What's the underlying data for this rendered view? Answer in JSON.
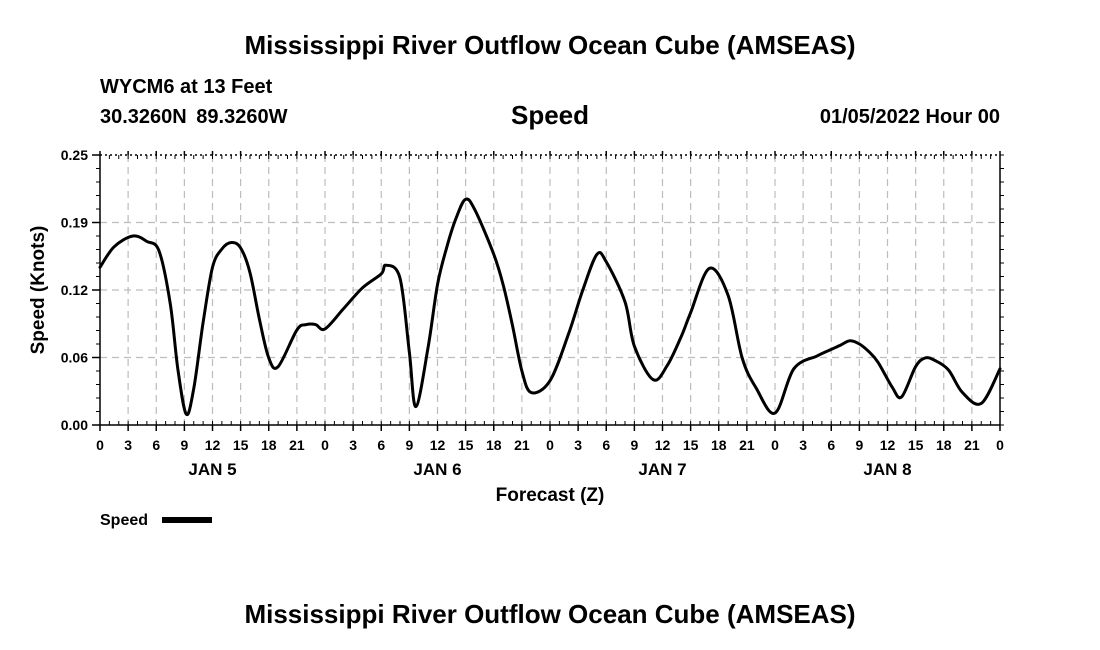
{
  "header": {
    "title": "Mississippi River Outflow Ocean Cube (AMSEAS)",
    "station": "WYCM6 at 13 Feet",
    "coordinates": "30.3260N  89.3260W",
    "variable": "Speed",
    "datetime": "01/05/2022 Hour 00"
  },
  "footer": {
    "title": "Mississippi River Outflow Ocean Cube (AMSEAS)"
  },
  "chart_data": {
    "type": "line",
    "title": "Speed",
    "xlabel": "Forecast (Z)",
    "ylabel": "Speed (Knots)",
    "ylim": [
      0,
      0.25
    ],
    "yticks": [
      "0.00",
      "0.06",
      "0.12",
      "0.19",
      "0.25"
    ],
    "ytick_values": [
      0,
      0.0625,
      0.125,
      0.1875,
      0.25
    ],
    "xlim_hours": [
      0,
      96
    ],
    "xtick_labels": [
      "0",
      "3",
      "6",
      "9",
      "12",
      "15",
      "18",
      "21",
      "0",
      "3",
      "6",
      "9",
      "12",
      "15",
      "18",
      "21",
      "0",
      "3",
      "6",
      "9",
      "12",
      "15",
      "18",
      "21",
      "0",
      "3",
      "6",
      "9",
      "12",
      "15",
      "18",
      "21",
      "0"
    ],
    "day_labels": [
      {
        "label": "JAN 5",
        "center_hour": 12
      },
      {
        "label": "JAN 6",
        "center_hour": 36
      },
      {
        "label": "JAN 7",
        "center_hour": 60
      },
      {
        "label": "JAN 8",
        "center_hour": 84
      }
    ],
    "grid": true,
    "legend": {
      "label": "Speed",
      "placement": "bottom-left"
    },
    "series": [
      {
        "name": "Speed",
        "color": "#000000",
        "x_hours": [
          0,
          1.5,
          3.5,
          5,
          6.3,
          7.5,
          8.3,
          9.2,
          10,
          11,
          12,
          13,
          14,
          15,
          16,
          17,
          18,
          19,
          21,
          22,
          23,
          24,
          26,
          28,
          30,
          30.5,
          32,
          33,
          33.7,
          35,
          36,
          37,
          38,
          39,
          40,
          42,
          43,
          44,
          45,
          46,
          48,
          50,
          51.5,
          53,
          54,
          56,
          57,
          59,
          60.5,
          62,
          63,
          65,
          67,
          68.5,
          70,
          72,
          74,
          76.5,
          78,
          79,
          80,
          81,
          82,
          83,
          84.5,
          85.5,
          87,
          88,
          89,
          90.5,
          92,
          94,
          96
        ],
        "y": [
          0.146,
          0.165,
          0.175,
          0.17,
          0.161,
          0.112,
          0.052,
          0.01,
          0.034,
          0.095,
          0.146,
          0.163,
          0.169,
          0.164,
          0.141,
          0.098,
          0.062,
          0.054,
          0.088,
          0.093,
          0.093,
          0.089,
          0.108,
          0.127,
          0.14,
          0.148,
          0.136,
          0.067,
          0.017,
          0.072,
          0.13,
          0.165,
          0.192,
          0.209,
          0.199,
          0.158,
          0.13,
          0.092,
          0.05,
          0.03,
          0.041,
          0.085,
          0.125,
          0.158,
          0.151,
          0.114,
          0.073,
          0.042,
          0.055,
          0.082,
          0.104,
          0.145,
          0.12,
          0.062,
          0.034,
          0.011,
          0.052,
          0.064,
          0.07,
          0.074,
          0.078,
          0.075,
          0.068,
          0.058,
          0.035,
          0.026,
          0.054,
          0.062,
          0.06,
          0.051,
          0.03,
          0.02,
          0.052
        ]
      }
    ]
  }
}
